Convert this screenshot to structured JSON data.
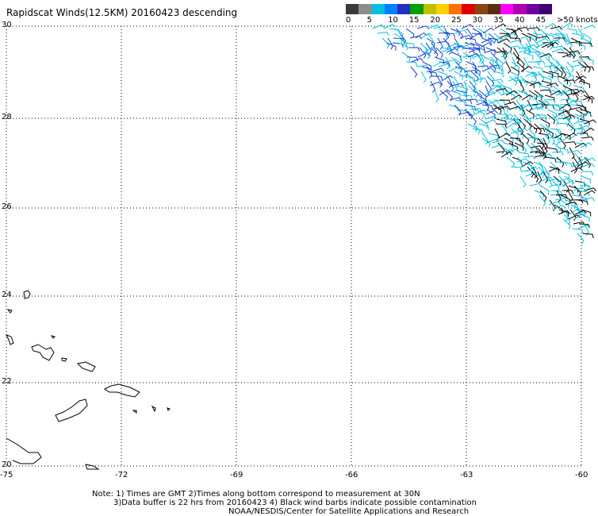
{
  "title": "Rapidscat Winds(12.5KM) 20160423 descending",
  "scale": {
    "colors": [
      "#3a3a3a",
      "#8c8c8c",
      "#00c0e0",
      "#0080ff",
      "#2030c0",
      "#00a000",
      "#c0c000",
      "#ffd000",
      "#ff7000",
      "#e00000",
      "#8b4513",
      "#5a2d0c",
      "#ff00ff",
      "#b000b0",
      "#7000a0",
      "#400070"
    ],
    "labels": [
      "0",
      "5",
      "10",
      "15",
      "20",
      "25",
      "30",
      "35",
      "40",
      "45",
      ">50 knots"
    ]
  },
  "axes": {
    "lat_labels": [
      "30",
      "28",
      "26",
      "24",
      "22",
      "20"
    ],
    "lon_labels": [
      "-75",
      "-72",
      "-69",
      "-66",
      "-63",
      "-60"
    ]
  },
  "notes": [
    "Note: 1) Times are GMT 2)Times along bottom correspond to measurement at 30N",
    "3)Data buffer is 22 hrs from 20160423 4) Black wind barbs indicate possible contamination",
    "NOAA/NESDIS/Center for Satellite Applications and Research"
  ],
  "barb_colors": {
    "light": "#00c0e0",
    "blue": "#1040d0",
    "green": "#20a020",
    "black": "#000000"
  }
}
